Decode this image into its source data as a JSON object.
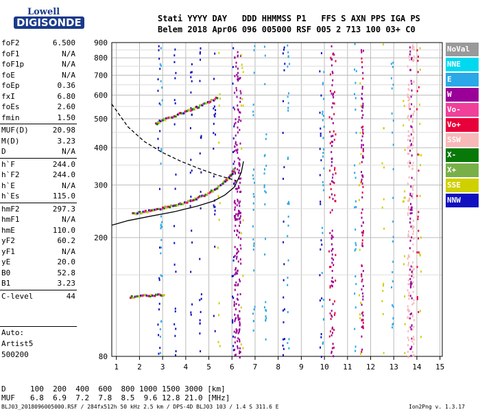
{
  "logo": {
    "line1": "Lowell",
    "line2": "DIGISONDE"
  },
  "header": {
    "row1": "Stati YYYY DAY   DDD HHMMSS P1   FFS S AXN PPS IGA PS",
    "row2": "Belem 2018 Apr06 096 005000 RSF 005 2 713 100 03+ C0"
  },
  "params": [
    {
      "name": "foF2",
      "value": "6.500"
    },
    {
      "name": "foF1",
      "value": "N/A"
    },
    {
      "name": "foF1p",
      "value": "N/A"
    },
    {
      "name": "foE",
      "value": "N/A"
    },
    {
      "name": "foEp",
      "value": "0.36"
    },
    {
      "name": "fxI",
      "value": "6.80"
    },
    {
      "name": "foEs",
      "value": "2.60"
    },
    {
      "name": "fmin",
      "value": "1.50"
    },
    {
      "sep": true
    },
    {
      "name": "MUF(D)",
      "value": "20.98"
    },
    {
      "name": "M(D)",
      "value": "3.23"
    },
    {
      "name": "D",
      "value": "N/A"
    },
    {
      "sep": true
    },
    {
      "name": "h`F",
      "value": "244.0"
    },
    {
      "name": "h`F2",
      "value": "244.0"
    },
    {
      "name": "h`E",
      "value": "N/A"
    },
    {
      "name": "h`Es",
      "value": "115.0"
    },
    {
      "sep": true
    },
    {
      "name": "hmF2",
      "value": "297.3"
    },
    {
      "name": "hmF1",
      "value": "N/A"
    },
    {
      "name": "hmE",
      "value": "110.0"
    },
    {
      "name": "yF2",
      "value": "60.2"
    },
    {
      "name": "yF1",
      "value": "N/A"
    },
    {
      "name": "yE",
      "value": "20.0"
    },
    {
      "name": "B0",
      "value": "52.8"
    },
    {
      "name": "B1",
      "value": "3.23"
    },
    {
      "sep": true
    },
    {
      "name": "C-level",
      "value": "44"
    }
  ],
  "footer": [
    "Auto:",
    "Artist5",
    "500200"
  ],
  "legend": [
    {
      "label": "NoVal",
      "color": "#999999"
    },
    {
      "label": "NNE",
      "color": "#00d8f0"
    },
    {
      "label": "E",
      "color": "#2aa8e8"
    },
    {
      "label": "W",
      "color": "#9a0098"
    },
    {
      "label": "Vo-",
      "color": "#f0409a"
    },
    {
      "label": "Vo+",
      "color": "#e8003a"
    },
    {
      "label": "SSW",
      "color": "#f8b8b8"
    },
    {
      "label": "X-",
      "color": "#087808"
    },
    {
      "label": "X+",
      "color": "#78b048"
    },
    {
      "label": "SSE",
      "color": "#d0d000"
    },
    {
      "label": "NNW",
      "color": "#1010c0"
    }
  ],
  "bottom": {
    "d_label": "D",
    "d_values": "100  200  400  600  800 1000 1500 3000 [km]",
    "muf_label": "MUF",
    "muf_values": "6.8  6.9  7.2  7.8  8.5  9.6 12.8 21.0 [MHz]",
    "file_info": "BLJ03_2018096005000.RSF / 284fx512h 50 kHz 2.5 km / DPS-4D BLJ03 103 / 1.4 S 311.6 E",
    "version": "Ion2Png v. 1.3.17"
  },
  "chart_data": {
    "type": "scatter",
    "title": "",
    "xlabel": "",
    "ylabel": "",
    "xlim": [
      0.8,
      15.1
    ],
    "ylim": [
      80,
      900
    ],
    "x_ticks": [
      1,
      2,
      3,
      4,
      5,
      6,
      7,
      8,
      9,
      10,
      11,
      12,
      13,
      14,
      15
    ],
    "y_ticks": [
      80,
      200,
      300,
      400,
      500,
      600,
      700,
      800,
      900
    ],
    "y_scale": "log",
    "grid": true,
    "trace_o": {
      "name": "o-trace",
      "x": [
        1.7,
        2.0,
        2.3,
        2.6,
        2.9,
        3.2,
        3.5,
        3.8,
        4.1,
        4.4,
        4.7,
        5.0,
        5.3,
        5.6,
        5.8,
        6.0,
        6.1
      ],
      "y": [
        242,
        245,
        247,
        250,
        253,
        256,
        259,
        262,
        266,
        272,
        278,
        285,
        295,
        308,
        318,
        330,
        345
      ]
    },
    "trace_o_upper": {
      "x": [
        2.7,
        3.0,
        3.3,
        3.6,
        3.9,
        4.2,
        4.5,
        4.8,
        5.1,
        5.4
      ],
      "y": [
        485,
        500,
        510,
        520,
        530,
        540,
        552,
        565,
        580,
        600
      ]
    },
    "trace_es": {
      "x": [
        1.6,
        1.9,
        2.2,
        2.5,
        2.8,
        3.1
      ],
      "y": [
        128,
        128,
        129,
        129,
        130,
        130
      ]
    },
    "profile_solid": {
      "x": [
        0.8,
        1.5,
        2.5,
        3.5,
        4.5,
        5.2,
        5.7,
        6.1,
        6.4,
        6.5
      ],
      "y": [
        220,
        228,
        236,
        244,
        255,
        265,
        278,
        295,
        330,
        360
      ]
    },
    "profile_dashed": {
      "x": [
        0.8,
        1.5,
        2.2,
        3.0,
        3.8,
        4.6,
        5.3,
        5.9,
        6.2
      ],
      "y": [
        560,
        470,
        420,
        385,
        360,
        340,
        325,
        315,
        310
      ]
    },
    "w_columns": [
      6.1,
      6.2,
      6.3,
      10.3,
      11.6,
      13.7
    ],
    "nnw_columns": [
      2.8,
      3.5,
      4.2,
      4.6,
      5.2,
      6.0,
      8.2,
      9.8
    ],
    "e_columns": [
      2.9,
      6.9,
      7.4,
      8.4,
      9.9,
      11.3,
      12.9
    ],
    "ssw_columns": [
      13.6,
      13.8
    ],
    "sse_columns": [
      5.4,
      6.4,
      11.5,
      12.5,
      13.4,
      14.1
    ],
    "vo_columns": [
      10.2,
      10.4,
      11.6,
      14.0
    ]
  }
}
